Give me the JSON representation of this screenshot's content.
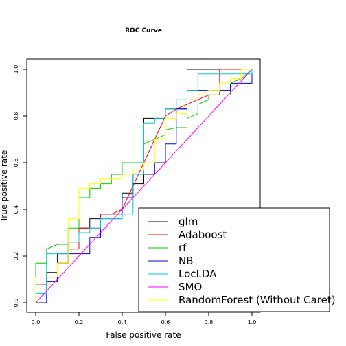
{
  "chart_data": {
    "type": "line",
    "title": "ROC Curve",
    "xlabel": "False positive rate",
    "ylabel": "True positive rate",
    "xlim": [
      0,
      1
    ],
    "ylim": [
      0,
      1
    ],
    "x_ticks": [
      "0.0",
      "0.2",
      "0.4",
      "0.6",
      "0.8",
      "1.0"
    ],
    "y_ticks": [
      "0.0",
      "0.2",
      "0.4",
      "0.6",
      "0.8",
      "1.0"
    ],
    "grid": false,
    "legend_position": "bottom-right",
    "series": [
      {
        "name": "glm",
        "color": "#000000",
        "points": [
          [
            0,
            0
          ],
          [
            0,
            0.08
          ],
          [
            0.05,
            0.08
          ],
          [
            0.05,
            0.13
          ],
          [
            0.1,
            0.13
          ],
          [
            0.1,
            0.17
          ],
          [
            0.15,
            0.17
          ],
          [
            0.15,
            0.26
          ],
          [
            0.2,
            0.26
          ],
          [
            0.2,
            0.32
          ],
          [
            0.25,
            0.32
          ],
          [
            0.25,
            0.36
          ],
          [
            0.3,
            0.36
          ],
          [
            0.3,
            0.38
          ],
          [
            0.35,
            0.38
          ],
          [
            0.35,
            0.38
          ],
          [
            0.4,
            0.38
          ],
          [
            0.4,
            0.47
          ],
          [
            0.45,
            0.47
          ],
          [
            0.45,
            0.51
          ],
          [
            0.5,
            0.51
          ],
          [
            0.5,
            0.79
          ],
          [
            0.55,
            0.79
          ],
          [
            0.55,
            0.79
          ],
          [
            0.6,
            0.79
          ],
          [
            0.6,
            0.83
          ],
          [
            0.65,
            0.83
          ],
          [
            0.65,
            0.83
          ],
          [
            0.7,
            0.83
          ],
          [
            0.7,
            1.0
          ],
          [
            1.0,
            1.0
          ]
        ]
      },
      {
        "name": "Adaboost",
        "color": "#ff0000",
        "points": [
          [
            0,
            0
          ],
          [
            0,
            0.08
          ],
          [
            0.05,
            0.08
          ],
          [
            0.05,
            0.11
          ],
          [
            0.1,
            0.11
          ],
          [
            0.1,
            0.17
          ],
          [
            0.15,
            0.17
          ],
          [
            0.15,
            0.23
          ],
          [
            0.2,
            0.23
          ],
          [
            0.2,
            0.32
          ],
          [
            0.3,
            0.32
          ],
          [
            0.3,
            0.38
          ],
          [
            0.35,
            0.38
          ],
          [
            0.4,
            0.4
          ],
          [
            0.45,
            0.5
          ],
          [
            0.5,
            0.6
          ],
          [
            0.55,
            0.7
          ],
          [
            0.6,
            0.8
          ],
          [
            0.65,
            0.83
          ],
          [
            0.75,
            0.87
          ],
          [
            0.8,
            0.89
          ],
          [
            0.85,
            0.89
          ],
          [
            0.85,
            1.0
          ],
          [
            0.95,
            1.0
          ],
          [
            1.0,
            1.0
          ]
        ]
      },
      {
        "name": "rf",
        "color": "#00cd00",
        "points": [
          [
            0,
            0
          ],
          [
            0,
            0.17
          ],
          [
            0.05,
            0.17
          ],
          [
            0.05,
            0.23
          ],
          [
            0.1,
            0.25
          ],
          [
            0.15,
            0.25
          ],
          [
            0.15,
            0.32
          ],
          [
            0.2,
            0.32
          ],
          [
            0.2,
            0.45
          ],
          [
            0.25,
            0.45
          ],
          [
            0.25,
            0.49
          ],
          [
            0.3,
            0.49
          ],
          [
            0.3,
            0.51
          ],
          [
            0.35,
            0.51
          ],
          [
            0.35,
            0.55
          ],
          [
            0.4,
            0.55
          ],
          [
            0.4,
            0.6
          ],
          [
            0.5,
            0.6
          ],
          [
            0.5,
            0.68
          ],
          [
            0.6,
            0.72
          ],
          [
            0.6,
            0.74
          ],
          [
            0.65,
            0.75
          ],
          [
            0.7,
            0.75
          ],
          [
            0.7,
            0.79
          ],
          [
            0.75,
            0.81
          ],
          [
            0.75,
            0.85
          ],
          [
            0.8,
            0.87
          ],
          [
            0.8,
            0.89
          ],
          [
            0.9,
            0.89
          ],
          [
            0.9,
            0.94
          ],
          [
            0.95,
            0.96
          ],
          [
            1.0,
            1.0
          ]
        ]
      },
      {
        "name": "NB",
        "color": "#0000ff",
        "points": [
          [
            0,
            0
          ],
          [
            0.05,
            0
          ],
          [
            0.05,
            0.09
          ],
          [
            0.1,
            0.09
          ],
          [
            0.1,
            0.21
          ],
          [
            0.15,
            0.21
          ],
          [
            0.15,
            0.21
          ],
          [
            0.2,
            0.21
          ],
          [
            0.2,
            0.21
          ],
          [
            0.25,
            0.21
          ],
          [
            0.25,
            0.28
          ],
          [
            0.3,
            0.28
          ],
          [
            0.3,
            0.36
          ],
          [
            0.35,
            0.36
          ],
          [
            0.35,
            0.36
          ],
          [
            0.4,
            0.36
          ],
          [
            0.4,
            0.45
          ],
          [
            0.45,
            0.45
          ],
          [
            0.45,
            0.55
          ],
          [
            0.5,
            0.55
          ],
          [
            0.5,
            0.55
          ],
          [
            0.55,
            0.55
          ],
          [
            0.55,
            0.6
          ],
          [
            0.6,
            0.6
          ],
          [
            0.6,
            0.68
          ],
          [
            0.65,
            0.68
          ],
          [
            0.65,
            0.83
          ],
          [
            0.7,
            0.83
          ],
          [
            0.7,
            0.91
          ],
          [
            0.85,
            0.91
          ],
          [
            0.85,
            0.91
          ],
          [
            0.9,
            0.91
          ],
          [
            0.9,
            0.94
          ],
          [
            1.0,
            0.94
          ],
          [
            1.0,
            1.0
          ]
        ]
      },
      {
        "name": "LocLDA",
        "color": "#00cdcd",
        "points": [
          [
            0,
            0
          ],
          [
            0,
            0.04
          ],
          [
            0.05,
            0.04
          ],
          [
            0.05,
            0.21
          ],
          [
            0.1,
            0.21
          ],
          [
            0.1,
            0.21
          ],
          [
            0.15,
            0.21
          ],
          [
            0.15,
            0.26
          ],
          [
            0.2,
            0.26
          ],
          [
            0.2,
            0.3
          ],
          [
            0.25,
            0.3
          ],
          [
            0.25,
            0.32
          ],
          [
            0.3,
            0.32
          ],
          [
            0.3,
            0.36
          ],
          [
            0.4,
            0.36
          ],
          [
            0.4,
            0.38
          ],
          [
            0.45,
            0.38
          ],
          [
            0.45,
            0.55
          ],
          [
            0.5,
            0.55
          ],
          [
            0.5,
            0.77
          ],
          [
            0.55,
            0.77
          ],
          [
            0.55,
            0.79
          ],
          [
            0.6,
            0.79
          ],
          [
            0.6,
            0.83
          ],
          [
            0.65,
            0.83
          ],
          [
            0.65,
            0.87
          ],
          [
            0.7,
            0.87
          ],
          [
            0.7,
            0.91
          ],
          [
            0.75,
            0.91
          ],
          [
            0.75,
            0.98
          ],
          [
            1.0,
            0.98
          ],
          [
            1.0,
            1.0
          ]
        ]
      },
      {
        "name": "SMO",
        "color": "#ff00ff",
        "points": [
          [
            0,
            0
          ],
          [
            1,
            1
          ]
        ]
      },
      {
        "name": "RandomForest (Without Caret)",
        "color": "#ffff00",
        "points": [
          [
            0,
            0
          ],
          [
            0,
            0.11
          ],
          [
            0.05,
            0.11
          ],
          [
            0.05,
            0.11
          ],
          [
            0.1,
            0.11
          ],
          [
            0.1,
            0.17
          ],
          [
            0.15,
            0.17
          ],
          [
            0.15,
            0.36
          ],
          [
            0.2,
            0.36
          ],
          [
            0.2,
            0.49
          ],
          [
            0.25,
            0.49
          ],
          [
            0.25,
            0.51
          ],
          [
            0.3,
            0.51
          ],
          [
            0.3,
            0.53
          ],
          [
            0.35,
            0.53
          ],
          [
            0.35,
            0.53
          ],
          [
            0.4,
            0.53
          ],
          [
            0.4,
            0.55
          ],
          [
            0.45,
            0.55
          ],
          [
            0.45,
            0.57
          ],
          [
            0.5,
            0.57
          ],
          [
            0.5,
            0.6
          ],
          [
            0.55,
            0.6
          ],
          [
            0.55,
            0.7
          ],
          [
            0.6,
            0.7
          ],
          [
            0.6,
            0.79
          ],
          [
            0.65,
            0.79
          ],
          [
            0.65,
            0.81
          ],
          [
            0.7,
            0.81
          ],
          [
            0.7,
            0.87
          ],
          [
            0.75,
            0.87
          ],
          [
            0.75,
            0.89
          ],
          [
            0.8,
            0.91
          ],
          [
            0.85,
            0.91
          ],
          [
            0.85,
            0.94
          ],
          [
            0.9,
            0.94
          ],
          [
            0.9,
            0.96
          ],
          [
            0.95,
            0.96
          ],
          [
            0.95,
            1.0
          ],
          [
            1.0,
            1.0
          ]
        ]
      }
    ]
  }
}
